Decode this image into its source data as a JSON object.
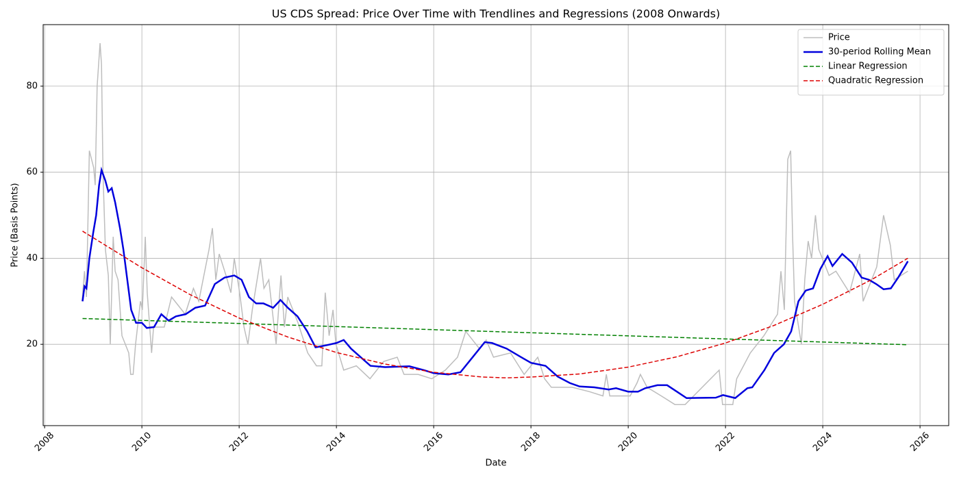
{
  "chart_data": {
    "type": "line",
    "title": "US CDS Spread: Price Over Time with Trendlines and Regressions (2008 Onwards)",
    "x_label": "Date",
    "y_label": "Price (Basis Points)",
    "xlim": [
      2007.97,
      2026.59
    ],
    "ylim": [
      1.1,
      94.3
    ],
    "xticks": [
      2008,
      2010,
      2012,
      2014,
      2016,
      2018,
      2020,
      2022,
      2024,
      2026
    ],
    "yticks": [
      20,
      40,
      60,
      80
    ],
    "grid": true,
    "legend": "upper right",
    "series": [
      {
        "name": "Price",
        "color": "#bdbdbd",
        "linestyle": "solid",
        "linewidth": 1.5,
        "x": [
          2008.77,
          2008.82,
          2008.86,
          2008.92,
          2009.01,
          2009.04,
          2009.08,
          2009.14,
          2009.17,
          2009.2,
          2009.25,
          2009.31,
          2009.35,
          2009.41,
          2009.45,
          2009.51,
          2009.59,
          2009.73,
          2009.77,
          2009.82,
          2009.87,
          2009.97,
          2010.01,
          2010.07,
          2010.11,
          2010.2,
          2010.24,
          2010.46,
          2010.61,
          2010.89,
          2011.06,
          2011.17,
          2011.38,
          2011.45,
          2011.52,
          2011.59,
          2011.73,
          2011.83,
          2011.9,
          2012.01,
          2012.1,
          2012.18,
          2012.27,
          2012.44,
          2012.51,
          2012.61,
          2012.76,
          2012.86,
          2012.93,
          2013.0,
          2013.21,
          2013.41,
          2013.59,
          2013.7,
          2013.77,
          2013.85,
          2013.93,
          2013.99,
          2014.15,
          2014.41,
          2014.69,
          2014.97,
          2015.25,
          2015.39,
          2015.68,
          2015.96,
          2016.24,
          2016.49,
          2016.66,
          2016.94,
          2017.08,
          2017.23,
          2017.58,
          2017.86,
          2018.14,
          2018.28,
          2018.42,
          2018.85,
          2019.2,
          2019.48,
          2019.55,
          2019.62,
          2020.04,
          2020.18,
          2020.25,
          2020.39,
          2020.68,
          2020.96,
          2021.17,
          2021.87,
          2021.94,
          2022.15,
          2022.23,
          2022.51,
          2022.79,
          2023.07,
          2023.14,
          2023.21,
          2023.28,
          2023.34,
          2023.38,
          2023.42,
          2023.56,
          2023.63,
          2023.7,
          2023.77,
          2023.85,
          2023.92,
          2024.13,
          2024.27,
          2024.55,
          2024.76,
          2024.83,
          2025.11,
          2025.25,
          2025.39,
          2025.47,
          2025.75
        ],
        "values": [
          30,
          37,
          31,
          65,
          61,
          57,
          80,
          90,
          85,
          60,
          42,
          36,
          20,
          45,
          37,
          35,
          22,
          18,
          13,
          13,
          20,
          30,
          28,
          45,
          32,
          18,
          24,
          24,
          31,
          27,
          33,
          30,
          42,
          47,
          35,
          41,
          36,
          32,
          40,
          32,
          24,
          20,
          28,
          40,
          33,
          35,
          20,
          36,
          24,
          31,
          25,
          18,
          15,
          15,
          32,
          22,
          28,
          20,
          14,
          15,
          12,
          16,
          17,
          13,
          13,
          12,
          14,
          17,
          23,
          19,
          21,
          17,
          18,
          13,
          17,
          12,
          10,
          10,
          9,
          8,
          13,
          8,
          8,
          11,
          13,
          10,
          8,
          6,
          6,
          14,
          6,
          6,
          12,
          18,
          22,
          27,
          37,
          28,
          63,
          65,
          45,
          30,
          20,
          35,
          44,
          40,
          50,
          42,
          36,
          37,
          32,
          41,
          30,
          38,
          50,
          43,
          35,
          37
        ]
      },
      {
        "name": "30-period Rolling Mean",
        "color": "#0000dd",
        "linestyle": "solid",
        "linewidth": 2.5,
        "x": [
          2008.78,
          2008.82,
          2008.86,
          2008.92,
          2009.0,
          2009.06,
          2009.12,
          2009.17,
          2009.25,
          2009.31,
          2009.38,
          2009.45,
          2009.55,
          2009.62,
          2009.7,
          2009.78,
          2009.88,
          2010.0,
          2010.1,
          2010.25,
          2010.4,
          2010.55,
          2010.7,
          2010.9,
          2011.1,
          2011.3,
          2011.5,
          2011.7,
          2011.9,
          2012.05,
          2012.2,
          2012.35,
          2012.5,
          2012.7,
          2012.85,
          2013.0,
          2013.2,
          2013.4,
          2013.57,
          2013.8,
          2014.0,
          2014.15,
          2014.3,
          2014.5,
          2014.7,
          2015.0,
          2015.5,
          2015.8,
          2016.0,
          2016.3,
          2016.55,
          2016.8,
          2017.05,
          2017.2,
          2017.5,
          2017.8,
          2018.0,
          2018.3,
          2018.55,
          2018.8,
          2019.0,
          2019.3,
          2019.6,
          2019.75,
          2020.0,
          2020.2,
          2020.35,
          2020.6,
          2020.8,
          2021.0,
          2021.2,
          2021.8,
          2021.95,
          2022.2,
          2022.45,
          2022.55,
          2022.8,
          2023.0,
          2023.2,
          2023.35,
          2023.5,
          2023.65,
          2023.8,
          2023.95,
          2024.1,
          2024.2,
          2024.4,
          2024.6,
          2024.8,
          2024.95,
          2025.1,
          2025.25,
          2025.4,
          2025.55,
          2025.75
        ],
        "values": [
          30,
          33.5,
          33,
          40,
          46,
          50,
          57,
          60.5,
          58,
          55.5,
          56.3,
          53,
          47,
          42,
          35,
          28,
          25,
          25,
          23.8,
          24,
          27,
          25.5,
          26.5,
          27,
          28.5,
          29,
          34,
          35.5,
          36,
          35,
          31,
          29.5,
          29.5,
          28.5,
          30.3,
          28.5,
          26.5,
          23,
          19.3,
          19.8,
          20.3,
          21,
          19,
          17,
          15,
          14.7,
          14.9,
          14,
          13.3,
          13,
          13.5,
          17,
          20.5,
          20.3,
          19,
          17,
          15.7,
          15,
          12.5,
          11,
          10.2,
          10,
          9.5,
          9.8,
          9,
          9,
          9.8,
          10.5,
          10.5,
          9,
          7.5,
          7.6,
          8.2,
          7.5,
          9.8,
          10,
          14,
          18,
          20,
          23,
          30,
          32.5,
          33,
          37.5,
          40.5,
          38.2,
          41,
          39,
          35.5,
          35,
          34,
          32.8,
          33,
          35.5,
          39.3
        ]
      },
      {
        "name": "Linear Regression",
        "color": "#008000",
        "linestyle": "dashed",
        "linewidth": 1.5,
        "x": [
          2008.78,
          2025.75
        ],
        "values": [
          26,
          19.9
        ]
      },
      {
        "name": "Quadratic Regression",
        "color": "#dd0000",
        "linestyle": "dashed",
        "linewidth": 1.5,
        "x": [
          2008.78,
          2010,
          2011,
          2012,
          2013,
          2014,
          2015,
          2016,
          2017,
          2017.5,
          2018,
          2019,
          2020,
          2021,
          2022,
          2023,
          2024,
          2025,
          2025.75
        ],
        "values": [
          46.3,
          37.8,
          31.5,
          26.1,
          21.7,
          18.1,
          15.4,
          13.5,
          12.4,
          12.2,
          12.4,
          13.1,
          14.7,
          17.1,
          20.3,
          24.4,
          29.3,
          35,
          40
        ]
      }
    ]
  }
}
